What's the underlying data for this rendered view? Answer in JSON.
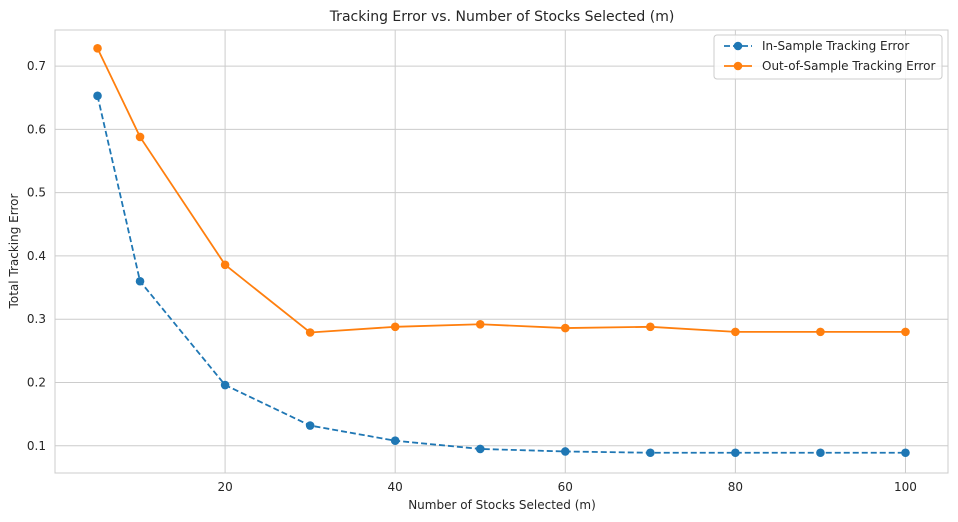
{
  "chart_data": {
    "type": "line",
    "title": "Tracking Error vs. Number of Stocks Selected (m)",
    "xlabel": "Number of Stocks Selected (m)",
    "ylabel": "Total Tracking Error",
    "xlim": [
      0,
      105
    ],
    "ylim": [
      0.057,
      0.757
    ],
    "xticks": [
      20,
      40,
      60,
      80,
      100
    ],
    "yticks": [
      0.1,
      0.2,
      0.3,
      0.4,
      0.5,
      0.6,
      0.7
    ],
    "grid": true,
    "legend_position": "top-right",
    "x": [
      5,
      10,
      20,
      30,
      40,
      50,
      60,
      70,
      80,
      90,
      100
    ],
    "series": [
      {
        "name": "In-Sample Tracking Error",
        "color": "#1f77b4",
        "linestyle": "dashed",
        "marker": "circle",
        "values": [
          0.653,
          0.36,
          0.196,
          0.132,
          0.108,
          0.095,
          0.091,
          0.089,
          0.089,
          0.089,
          0.089
        ]
      },
      {
        "name": "Out-of-Sample Tracking Error",
        "color": "#ff7f0e",
        "linestyle": "solid",
        "marker": "circle",
        "values": [
          0.728,
          0.588,
          0.386,
          0.279,
          0.288,
          0.292,
          0.286,
          0.288,
          0.28,
          0.28,
          0.28
        ]
      }
    ]
  }
}
